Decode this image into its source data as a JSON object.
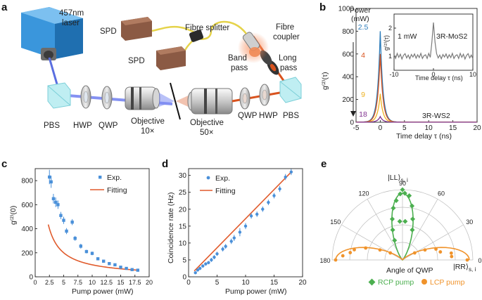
{
  "panel_a": {
    "label": "a",
    "components": {
      "laser": "457nm\nlaser",
      "spd1": "SPD",
      "spd2": "SPD",
      "fibre_splitter": "Fibre splitter",
      "fibre_coupler": "Fibre\ncoupler",
      "band_pass": "Band\npass",
      "long_pass": "Long\npass",
      "pbs_left": "PBS",
      "hwp_left": "HWP",
      "qwp_left": "QWP",
      "objective_left": "Objective\n10×",
      "objective_right": "Objective\n50×",
      "qwp_right": "QWP",
      "hwp_right": "HWP",
      "pbs_right": "PBS"
    },
    "colors": {
      "laser_body": "#2f8fd6",
      "blue_beam": "#5a6ee0",
      "red_beam": "#d9531e",
      "fibre": "#e5d34a",
      "spd": "#8b5a44"
    }
  },
  "panel_b": {
    "label": "b",
    "legend_title": "Power\n(mW)",
    "ylabel": "g(2)(τ)",
    "xlabel": "Time delay τ (ns)",
    "material": "3R-WS2",
    "inset": {
      "power": "1 mW",
      "material": "3R-MoS2",
      "ylabel": "g(2)(τ)",
      "xlabel": "Time delay τ (ns)",
      "xticks": [
        "-10",
        "0",
        "10"
      ],
      "yticks": [
        "1",
        "2"
      ]
    }
  },
  "panel_c": {
    "label": "c"
  },
  "panel_d": {
    "label": "d"
  },
  "panel_e": {
    "label": "e",
    "top_label": "|LL⟩s, i",
    "right_label": "|RR⟩s, i",
    "angle_labels": [
      "90",
      "60",
      "30",
      "0",
      "120",
      "150",
      "180"
    ],
    "center_label": "Angle of QWP",
    "legend": [
      {
        "label": "RCP pump",
        "color": "#4caf50",
        "marker": "diamond"
      },
      {
        "label": "LCP pump",
        "color": "#f0932b",
        "marker": "circle"
      }
    ]
  },
  "chart_data": [
    {
      "type": "line",
      "panel": "b",
      "xlabel": "Time delay τ (ns)",
      "ylabel": "g(2)(τ)",
      "xlim": [
        -5,
        20
      ],
      "ylim": [
        0,
        1000
      ],
      "xticks": [
        -5,
        0,
        5,
        10,
        15,
        20
      ],
      "yticks": [
        0,
        200,
        400,
        600,
        800,
        1000
      ],
      "annotation": "3R-WS2",
      "series": [
        {
          "name": "2.5",
          "color": "#2b7bb9",
          "peak": 800
        },
        {
          "name": "4",
          "color": "#d9531e",
          "peak": 600
        },
        {
          "name": "9",
          "color": "#edb120",
          "peak": 250
        },
        {
          "name": "18",
          "color": "#7e2f8e",
          "peak": 50
        }
      ]
    },
    {
      "type": "line",
      "panel": "b-inset",
      "xlabel": "Time delay τ (ns)",
      "ylabel": "g(2)(τ)",
      "xlim": [
        -10,
        10
      ],
      "ylim": [
        0.5,
        2.5
      ],
      "annotation": "3R-MoS2",
      "series": [
        {
          "name": "1 mW",
          "peak_x": 0,
          "peak_y": 2.2,
          "baseline": 1.0
        }
      ]
    },
    {
      "type": "scatter",
      "panel": "c",
      "xlabel": "Pump power (mW)",
      "ylabel": "g(2)(0)",
      "xlim": [
        0,
        20
      ],
      "ylim": [
        0,
        900
      ],
      "xticks": [
        0,
        2.5,
        5,
        7.5,
        10,
        12.5,
        15,
        17.5,
        20
      ],
      "yticks": [
        0,
        200,
        400,
        600,
        800
      ],
      "legend": [
        "Exp.",
        "Fitting"
      ],
      "series": [
        {
          "name": "Exp.",
          "color": "#4a90d9",
          "x": [
            2.5,
            2.8,
            3.2,
            3.6,
            4.0,
            4.5,
            5.0,
            5.5,
            6.5,
            7.0,
            8.0,
            9.0,
            10.0,
            11.0,
            12.0,
            13.0,
            14.0,
            15.0,
            16.0,
            17.0,
            18.0
          ],
          "y": [
            830,
            790,
            650,
            620,
            600,
            510,
            470,
            380,
            455,
            320,
            255,
            210,
            195,
            150,
            130,
            110,
            100,
            80,
            70,
            60,
            55
          ],
          "err": [
            60,
            50,
            40,
            40,
            35,
            30,
            30,
            25,
            25,
            20,
            20,
            15,
            15,
            12,
            12,
            10,
            10,
            10,
            8,
            8,
            8
          ]
        },
        {
          "name": "Fitting",
          "color": "#e05a2b",
          "model": "a/x",
          "a": 1000
        }
      ]
    },
    {
      "type": "scatter",
      "panel": "d",
      "xlabel": "Pump power (mW)",
      "ylabel": "Coincidence rate (Hz)",
      "xlim": [
        0,
        20
      ],
      "ylim": [
        0,
        32
      ],
      "xticks": [
        0,
        5,
        10,
        15,
        20
      ],
      "yticks": [
        0,
        5,
        10,
        15,
        20,
        25,
        30
      ],
      "legend": [
        "Exp.",
        "Fitting"
      ],
      "series": [
        {
          "name": "Exp.",
          "color": "#4a90d9",
          "x": [
            1.2,
            1.6,
            2.0,
            2.5,
            3.0,
            3.5,
            4.0,
            4.5,
            5.0,
            6.0,
            6.5,
            7.5,
            8.0,
            9.0,
            10.0,
            11.0,
            12.0,
            13.0,
            14.0,
            15.0,
            16.0,
            17.0,
            18.0
          ],
          "y": [
            1.2,
            2.0,
            2.5,
            3.2,
            3.8,
            4.2,
            5.0,
            5.8,
            6.8,
            8.2,
            9.0,
            10.5,
            11.5,
            13.2,
            15.0,
            18.0,
            18.5,
            20.0,
            22.0,
            24.0,
            26.0,
            29.5,
            31.0
          ],
          "err": [
            0.4,
            0.4,
            0.5,
            0.5,
            0.5,
            0.5,
            0.6,
            0.6,
            0.6,
            0.7,
            0.7,
            0.8,
            0.9,
            1.2,
            0.9,
            0.8,
            0.8,
            0.8,
            0.8,
            0.8,
            0.9,
            0.9,
            0.9
          ]
        },
        {
          "name": "Fitting",
          "color": "#e05a2b",
          "model": "linear",
          "slope": 1.72,
          "intercept": 0
        }
      ]
    },
    {
      "type": "scatter",
      "panel": "e",
      "coordinate": "polar",
      "theta_range": [
        0,
        180
      ],
      "theta_ticks": [
        0,
        30,
        60,
        90,
        120,
        150,
        180
      ],
      "series": [
        {
          "name": "RCP pump",
          "color": "#4caf50",
          "theta": [
            72,
            76,
            80,
            84,
            86,
            88,
            90,
            92,
            94,
            96,
            100,
            104,
            108,
            112
          ],
          "r": [
            0.45,
            0.6,
            0.78,
            0.92,
            0.55,
            0.95,
            1.0,
            0.94,
            0.55,
            0.85,
            0.75,
            0.6,
            0.45,
            0.3
          ]
        },
        {
          "name": "LCP pump",
          "color": "#f0932b",
          "theta": [
            0,
            4,
            8,
            12,
            18,
            24,
            30,
            150,
            156,
            162,
            168,
            172,
            176,
            180
          ],
          "r": [
            0.92,
            0.7,
            0.7,
            0.55,
            0.5,
            0.35,
            0.2,
            0.2,
            0.35,
            0.55,
            0.7,
            0.75,
            0.85,
            0.95
          ]
        }
      ]
    }
  ]
}
